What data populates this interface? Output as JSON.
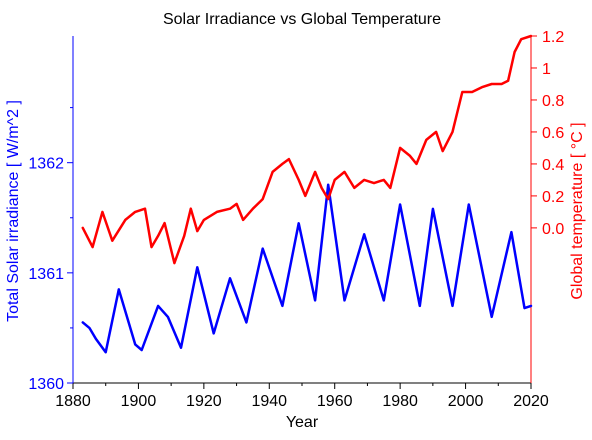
{
  "chart_data": {
    "type": "line",
    "title": "Solar Irradiance vs Global Temperature",
    "xlabel": "Year",
    "xlim": [
      1880,
      2020
    ],
    "xticks": [
      1880,
      1900,
      1920,
      1940,
      1960,
      1980,
      2000,
      2020
    ],
    "y_left": {
      "label": "Total Solar irradiance  [ W/m^2 ]",
      "color": "#0000ff",
      "ylim": [
        1360,
        1363.15
      ],
      "ticks": [
        1360,
        1361,
        1362
      ]
    },
    "y_right": {
      "label": "Global temperature  [ °C ]",
      "color": "#ff0000",
      "ylim": [
        -0.97,
        1.2
      ],
      "ticks": [
        0.0,
        0.2,
        0.4,
        0.6,
        0.8,
        1.0,
        1.2
      ],
      "tick_labels": [
        "0.0",
        "0.2",
        "0.4",
        "0.6",
        "0.8",
        "1",
        "1.2"
      ]
    },
    "grid": false,
    "series": [
      {
        "axis": "left",
        "color": "#0000ff",
        "x": [
          1883,
          1885,
          1887,
          1890,
          1894,
          1899,
          1901,
          1906,
          1909,
          1913,
          1918,
          1923,
          1928,
          1933,
          1938,
          1944,
          1949,
          1954,
          1958,
          1963,
          1969,
          1975,
          1980,
          1986,
          1990,
          1996,
          2001,
          2008,
          2014,
          2018,
          2020
        ],
        "values": [
          1360.55,
          1360.5,
          1360.4,
          1360.28,
          1360.85,
          1360.35,
          1360.3,
          1360.7,
          1360.6,
          1360.32,
          1361.05,
          1360.45,
          1360.95,
          1360.55,
          1361.22,
          1360.7,
          1361.45,
          1360.75,
          1361.8,
          1360.75,
          1361.35,
          1360.75,
          1361.62,
          1360.7,
          1361.58,
          1360.7,
          1361.62,
          1360.6,
          1361.37,
          1360.68,
          1360.7
        ]
      },
      {
        "axis": "right",
        "color": "#ff0000",
        "x": [
          1883,
          1886,
          1889,
          1892,
          1896,
          1899,
          1902,
          1904,
          1906,
          1908,
          1911,
          1914,
          1916,
          1918,
          1920,
          1924,
          1928,
          1930,
          1932,
          1935,
          1938,
          1941,
          1944,
          1946,
          1949,
          1951,
          1954,
          1956,
          1958,
          1960,
          1963,
          1966,
          1969,
          1972,
          1975,
          1977,
          1980,
          1983,
          1985,
          1988,
          1991,
          1993,
          1996,
          1999,
          2002,
          2005,
          2008,
          2011,
          2013,
          2015,
          2017,
          2020
        ],
        "values": [
          0.0,
          -0.12,
          0.1,
          -0.08,
          0.05,
          0.1,
          0.12,
          -0.12,
          -0.05,
          0.03,
          -0.22,
          -0.05,
          0.12,
          -0.02,
          0.05,
          0.1,
          0.12,
          0.15,
          0.05,
          0.12,
          0.18,
          0.35,
          0.4,
          0.43,
          0.3,
          0.2,
          0.35,
          0.25,
          0.18,
          0.3,
          0.35,
          0.25,
          0.3,
          0.28,
          0.3,
          0.25,
          0.5,
          0.45,
          0.4,
          0.55,
          0.6,
          0.48,
          0.6,
          0.85,
          0.85,
          0.88,
          0.9,
          0.9,
          0.92,
          1.1,
          1.18,
          1.2
        ]
      }
    ]
  }
}
